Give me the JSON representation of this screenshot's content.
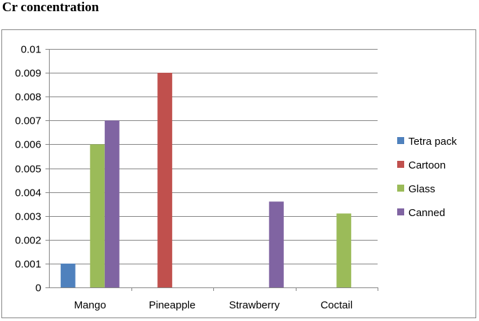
{
  "page": {
    "title": "Cr concentration"
  },
  "chart_data": {
    "type": "bar",
    "title": "",
    "xlabel": "",
    "ylabel": "",
    "categories": [
      "Mango",
      "Pineapple",
      "Strawberry",
      "Coctail"
    ],
    "ylim": [
      0,
      0.01
    ],
    "yticks": [
      "0",
      "0.001",
      "0.002",
      "0.003",
      "0.004",
      "0.005",
      "0.006",
      "0.007",
      "0.008",
      "0.009",
      "0.01"
    ],
    "grid": true,
    "legend_position": "right",
    "series": [
      {
        "name": "Tetra pack",
        "color": "#4f81bd",
        "values": [
          0.001,
          0,
          0,
          0
        ]
      },
      {
        "name": "Cartoon",
        "color": "#c0504d",
        "values": [
          0,
          0.009,
          0,
          0
        ]
      },
      {
        "name": "Glass",
        "color": "#9bbb59",
        "values": [
          0.006,
          0,
          0,
          0.0031
        ]
      },
      {
        "name": "Canned",
        "color": "#8064a2",
        "values": [
          0.007,
          0,
          0.0036,
          0
        ]
      }
    ]
  }
}
